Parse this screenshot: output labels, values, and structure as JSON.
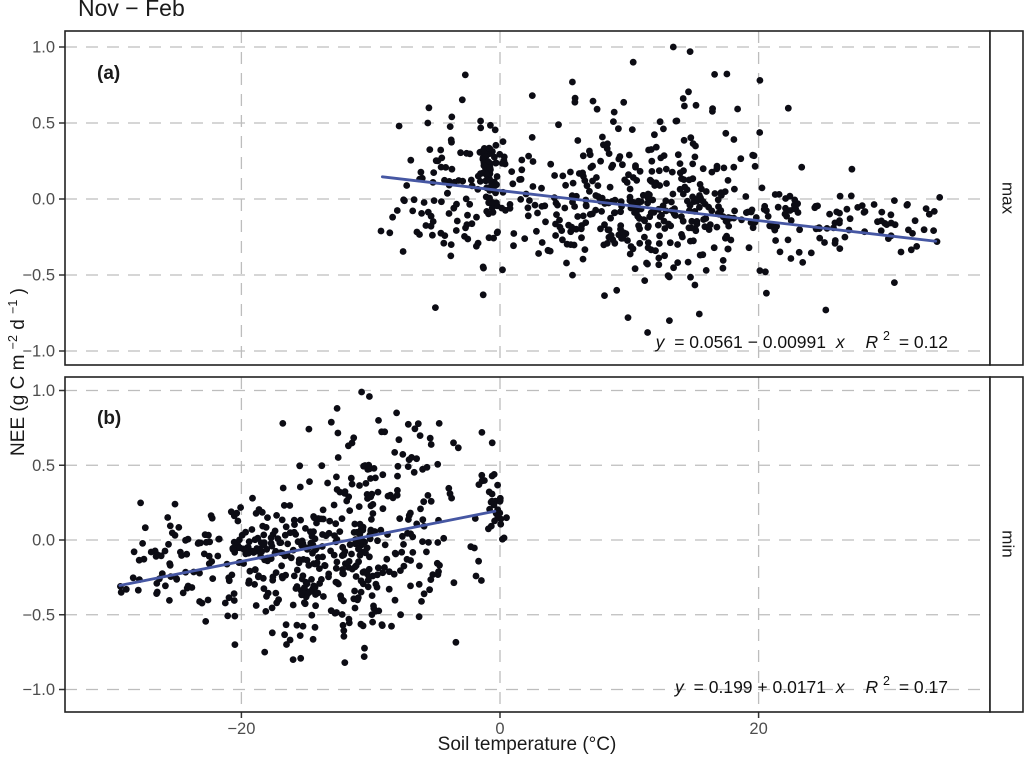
{
  "figure": {
    "title": "Nov − Feb",
    "x_axis_label": "Soil temperature (°C)",
    "y_axis_label_parts": {
      "p1": "NEE (g C m",
      "s1": "−2",
      "p2": " d",
      "s2": "−1",
      "p3": ")"
    }
  },
  "chart_data": {
    "type": "scatter",
    "title": "Nov − Feb",
    "xlabel": "Soil temperature (°C)",
    "ylabel": "NEE (g C m−2 d−1)",
    "x_domain": [
      -33.6,
      37.9
    ],
    "y_domain": [
      -1.09,
      1.09
    ],
    "grid": true,
    "legend_position": "none",
    "x_ticks": [
      {
        "v": -20,
        "label": "−20"
      },
      {
        "v": 0,
        "label": "0"
      },
      {
        "v": 20,
        "label": "20"
      }
    ],
    "y_ticks": [
      {
        "v": 1.0,
        "label": "1.0"
      },
      {
        "v": 0.5,
        "label": "0.5"
      },
      {
        "v": 0.0,
        "label": "0.0"
      },
      {
        "v": -0.5,
        "label": "−0.5"
      },
      {
        "v": -1.0,
        "label": "−1.0"
      }
    ],
    "colors": {
      "point": "#0c0c14",
      "line": "#4657a3",
      "grid": "#bdbdbd",
      "tick_label": "#4d4d4d",
      "border": "#222222",
      "strip_bg": "#ffffff"
    },
    "panels": [
      {
        "id": "a",
        "label": "(a)",
        "strip_label": "max",
        "equation": {
          "lhs": "y",
          "mid": "= 0.0561 − 0.00991",
          "xvar": "x",
          "r": "R",
          "rsup": "2",
          "rval": "= 0.12"
        },
        "regression": {
          "intercept": 0.0561,
          "slope": -0.00991,
          "r2": 0.12,
          "x1": -9.1,
          "y1": 0.146,
          "x2": 33.7,
          "y2": -0.278
        },
        "points_approx": {
          "seed": 42,
          "bounds": {
            "x": [
              -9.4,
              34.2
            ],
            "y": [
              -1.03,
              1.01
            ]
          },
          "clusters": [
            {
              "n": 120,
              "cx": -3.0,
              "cy": 0.04,
              "sx": 3.0,
              "sy": 0.23
            },
            {
              "n": 40,
              "cx": -0.8,
              "cy": 0.22,
              "sx": 0.6,
              "sy": 0.12
            },
            {
              "n": 320,
              "cx": 11.5,
              "cy": -0.07,
              "sx": 5.8,
              "sy": 0.16
            },
            {
              "n": 55,
              "cx": 11.0,
              "cy": 0.42,
              "sx": 5.5,
              "sy": 0.2
            },
            {
              "n": 65,
              "cx": 27.5,
              "cy": -0.15,
              "sx": 3.8,
              "sy": 0.11
            },
            {
              "n": 22,
              "cx": 12.0,
              "cy": -0.47,
              "sx": 6.0,
              "sy": 0.13
            }
          ],
          "extra_points": [
            [
              13.4,
              1.0
            ],
            [
              14.7,
              0.97
            ],
            [
              10.3,
              0.9
            ],
            [
              16.6,
              0.82
            ],
            [
              20.1,
              0.78
            ],
            [
              5.6,
              0.77
            ],
            [
              2.5,
              0.68
            ],
            [
              -5.5,
              0.6
            ],
            [
              -7.8,
              0.48
            ],
            [
              9.9,
              -0.78
            ],
            [
              13.1,
              -0.8
            ],
            [
              25.2,
              -0.73
            ],
            [
              -1.3,
              -0.63
            ],
            [
              20.6,
              -0.62
            ],
            [
              30.5,
              -0.55
            ],
            [
              33.8,
              -0.28
            ],
            [
              33.2,
              -0.1
            ]
          ]
        }
      },
      {
        "id": "b",
        "label": "(b)",
        "strip_label": "min",
        "equation": {
          "lhs": "y",
          "mid": "= 0.199 + 0.0171",
          "xvar": "x",
          "r": "R",
          "rsup": "2",
          "rval": "= 0.17"
        },
        "regression": {
          "intercept": 0.199,
          "slope": 0.0171,
          "r2": 0.17,
          "x1": -29.4,
          "y1": -0.304,
          "x2": -0.4,
          "y2": 0.192
        },
        "points_approx": {
          "seed": 1337,
          "bounds": {
            "x": [
              -29.6,
              0.9
            ],
            "y": [
              -1.03,
              1.0
            ]
          },
          "clusters": [
            {
              "n": 360,
              "cx": -13.5,
              "cy": -0.12,
              "sx": 5.0,
              "sy": 0.19
            },
            {
              "n": 75,
              "cx": -9.5,
              "cy": 0.4,
              "sx": 3.2,
              "sy": 0.2
            },
            {
              "n": 55,
              "cx": -24.5,
              "cy": -0.18,
              "sx": 2.6,
              "sy": 0.15
            },
            {
              "n": 26,
              "cx": -0.5,
              "cy": 0.25,
              "sx": 0.5,
              "sy": 0.11
            },
            {
              "n": 28,
              "cx": -14.0,
              "cy": -0.55,
              "sx": 4.2,
              "sy": 0.12
            }
          ],
          "extra_points": [
            [
              -10.7,
              0.99
            ],
            [
              -10.1,
              0.96
            ],
            [
              -12.6,
              0.88
            ],
            [
              -8.0,
              0.85
            ],
            [
              -9.4,
              0.8
            ],
            [
              -4.7,
              0.78
            ],
            [
              -16.8,
              0.78
            ],
            [
              -1.4,
              0.72
            ],
            [
              -3.6,
              0.65
            ],
            [
              -0.6,
              0.65
            ],
            [
              -28.9,
              -0.33
            ],
            [
              -29.3,
              -0.35
            ],
            [
              -16.0,
              -0.8
            ],
            [
              -12.0,
              -0.82
            ],
            [
              -18.2,
              -0.75
            ],
            [
              -10.5,
              -0.78
            ],
            [
              -20.5,
              -0.7
            ]
          ]
        }
      }
    ]
  }
}
